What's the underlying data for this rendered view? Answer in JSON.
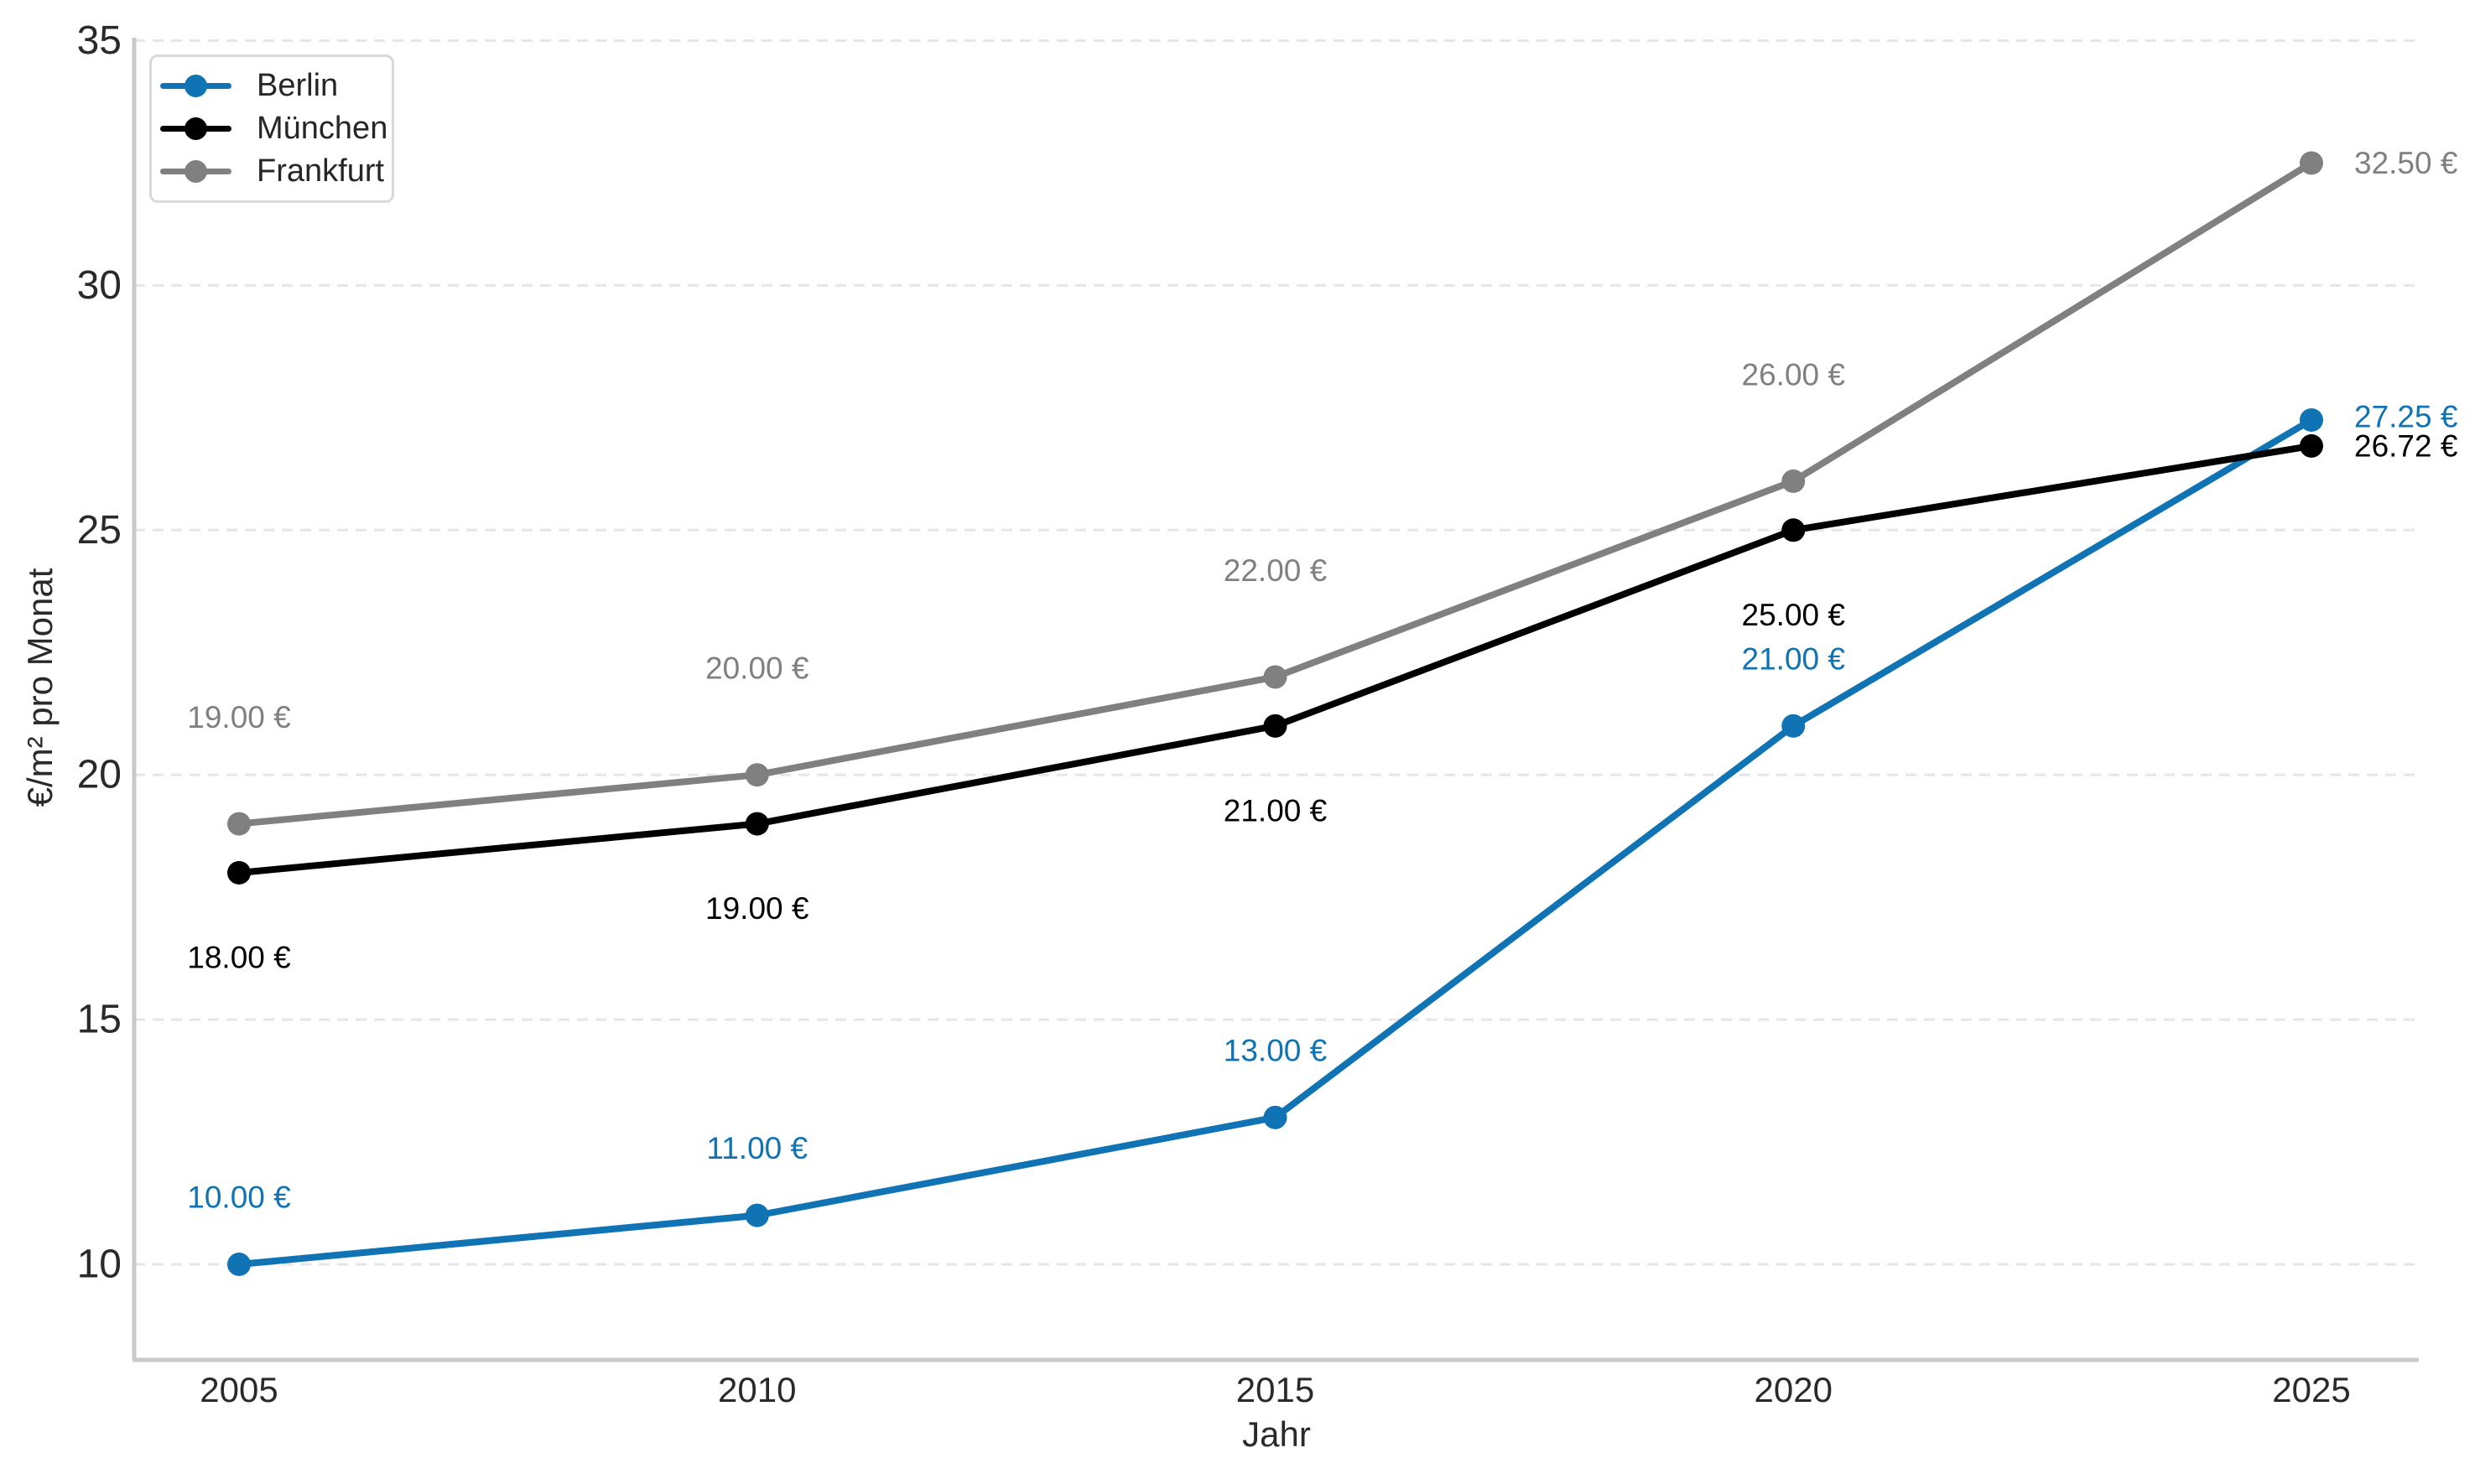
{
  "figure": {
    "background": "#ffffff",
    "text_color": "#2a2a2a",
    "grid_color": "#e6e6e6",
    "spine_color": "#c9c9c9"
  },
  "chart_data": {
    "type": "line",
    "title": "",
    "xlabel": "Jahr",
    "ylabel": "€/m² pro Monat",
    "x": [
      2005,
      2010,
      2015,
      2020,
      2025
    ],
    "x_tick_labels": [
      "2005",
      "2010",
      "2015",
      "2020",
      "2025"
    ],
    "y_ticks": [
      10,
      15,
      20,
      25,
      30,
      35
    ],
    "y_tick_labels": [
      "10",
      "15",
      "20",
      "25",
      "30",
      "35"
    ],
    "xlim": [
      2004,
      2026
    ],
    "ylim": [
      8,
      35.3
    ],
    "grid": "horizontal-dashed",
    "legend_position": "upper-left",
    "series": [
      {
        "name": "Berlin",
        "color": "#0f73b4",
        "values": [
          10,
          11,
          13,
          21,
          27.25
        ],
        "point_labels": [
          "10.00 €",
          "11.00 €",
          "13.00 €",
          "21.00 €",
          "27.25 €"
        ],
        "label_side": "above",
        "label_gap": 80,
        "last_label_dy": -4
      },
      {
        "name": "München",
        "color": "#000000",
        "values": [
          18,
          19,
          21,
          25,
          26.72
        ],
        "point_labels": [
          "18.00 €",
          "19.00 €",
          "21.00 €",
          "25.00 €",
          "26.72 €"
        ],
        "label_side": "below",
        "label_gap": 101,
        "last_label_dy": 0
      },
      {
        "name": "Frankfurt",
        "color": "#808080",
        "values": [
          19,
          20,
          22,
          26,
          32.5
        ],
        "point_labels": [
          "19.00 €",
          "20.00 €",
          "22.00 €",
          "26.00 €",
          "32.50 €"
        ],
        "label_side": "above",
        "label_gap": 127,
        "last_label_dy": 0
      }
    ]
  }
}
